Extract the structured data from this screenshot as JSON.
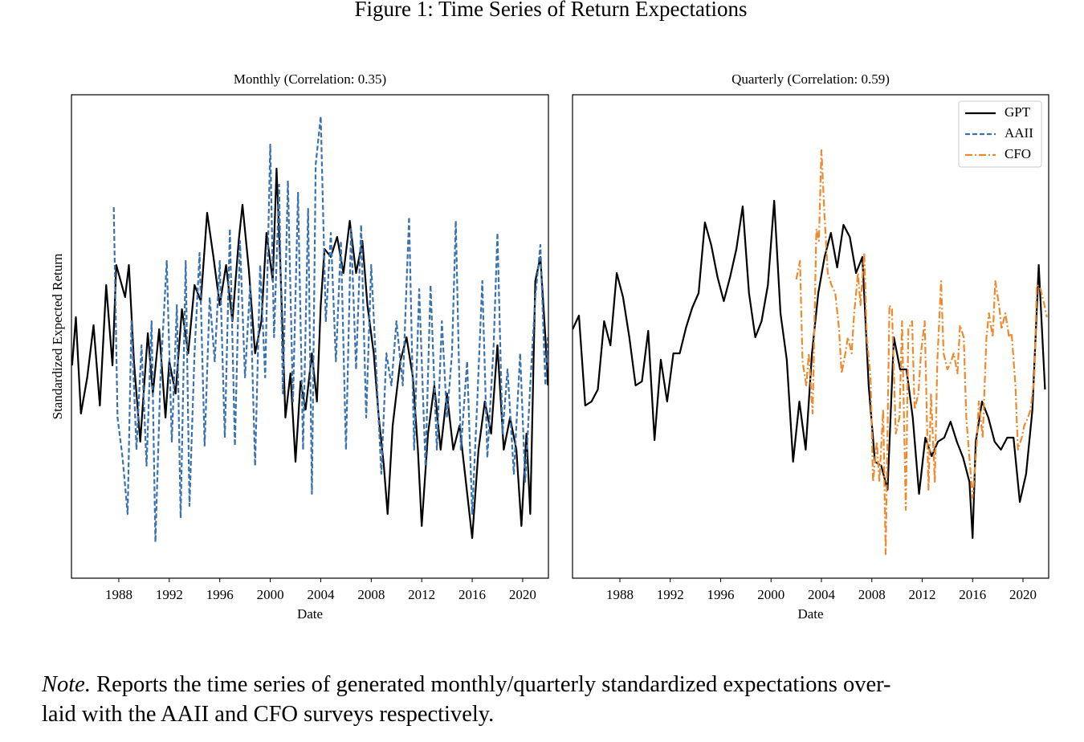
{
  "figure_title": "Figure 1: Time Series of Return Expectations",
  "note": {
    "label": "Note.",
    "lines": [
      "Reports the time series of generated monthly/quarterly standardized expectations over-",
      "laid with the AAII and CFO surveys respectively."
    ]
  },
  "chart_data": [
    {
      "type": "line",
      "title": "Monthly (Correlation: 0.35)",
      "xlabel": "Date",
      "ylabel": "Standardized Expected Return",
      "xlim": [
        1984.25,
        2022.04
      ],
      "ylim": [
        -3.0,
        3.02
      ],
      "xticks": [
        1988,
        1992,
        1996,
        2000,
        2004,
        2008,
        2012,
        2016,
        2020
      ],
      "grid": false,
      "series": [
        {
          "name": "GPT",
          "color": "#000000",
          "dash": "solid",
          "x": [
            1984.3,
            1984.6,
            1985,
            1985.5,
            1986,
            1986.5,
            1987,
            1987.5,
            1987.8,
            1988.5,
            1988.8,
            1989.2,
            1989.7,
            1990.3,
            1990.7,
            1991.2,
            1991.7,
            1992,
            1992.5,
            1993,
            1993.5,
            1994,
            1994.5,
            1995,
            1995.5,
            1996,
            1996.5,
            1997,
            1997.5,
            1997.8,
            1998.3,
            1998.8,
            1999.3,
            1999.7,
            2000.2,
            2000.5,
            2000.8,
            2001.2,
            2001.6,
            2002,
            2002.4,
            2002.8,
            2003.3,
            2003.7,
            2004,
            2004.3,
            2004.8,
            2005.3,
            2005.8,
            2006.3,
            2006.8,
            2007.3,
            2007.7,
            2008.2,
            2008.6,
            2009,
            2009.3,
            2009.7,
            2010.3,
            2010.8,
            2011.3,
            2011.7,
            2012,
            2012.5,
            2013,
            2013.5,
            2014,
            2014.5,
            2015,
            2015.5,
            2016,
            2016.5,
            2017,
            2017.5,
            2018,
            2018.5,
            2019,
            2019.5,
            2019.9,
            2020.3,
            2020.6,
            2021,
            2021.4,
            2021.8,
            2022
          ],
          "values": [
            -0.35,
            0.25,
            -0.95,
            -0.5,
            0.15,
            -0.85,
            0.65,
            -0.35,
            0.9,
            0.5,
            0.9,
            -0.3,
            -1.3,
            0.05,
            -0.7,
            0.1,
            -1.0,
            -0.3,
            -0.7,
            0.35,
            -0.2,
            0.65,
            0.45,
            1.55,
            1.0,
            0.4,
            0.9,
            0.2,
            1.2,
            1.65,
            0.85,
            -0.2,
            0.2,
            1.3,
            0.7,
            2.1,
            0.9,
            -1.0,
            -0.45,
            -1.55,
            -0.55,
            -0.9,
            -0.2,
            -0.8,
            0.4,
            1.1,
            1.0,
            1.25,
            0.8,
            1.45,
            0.8,
            1.2,
            0.4,
            -0.2,
            -1.0,
            -1.6,
            -2.2,
            -1.1,
            -0.3,
            0.0,
            -0.5,
            -1.4,
            -2.35,
            -1.2,
            -0.6,
            -1.4,
            -0.7,
            -1.4,
            -1.1,
            -1.8,
            -2.5,
            -1.4,
            -0.8,
            -1.2,
            -0.1,
            -1.4,
            -1.0,
            -1.4,
            -2.35,
            -1.2,
            -2.2,
            0.7,
            1.0,
            0.0,
            -0.6
          ]
        },
        {
          "name": "AAII",
          "color": "#3a72b0",
          "dash": "dashed",
          "x": [
            1987.6,
            1987.9,
            1988.3,
            1988.7,
            1989,
            1989.4,
            1989.8,
            1990.2,
            1990.6,
            1990.9,
            1991.3,
            1991.8,
            1992.2,
            1992.6,
            1992.9,
            1993.3,
            1993.6,
            1994,
            1994.4,
            1994.8,
            1995.2,
            1995.6,
            1996,
            1996.4,
            1996.8,
            1997.2,
            1997.6,
            1998,
            1998.4,
            1998.8,
            1999.2,
            1999.6,
            2000,
            2000.3,
            2000.7,
            2001,
            2001.4,
            2001.8,
            2002.2,
            2002.6,
            2003,
            2003.3,
            2003.6,
            2004,
            2004.4,
            2004.8,
            2005.2,
            2005.6,
            2006,
            2006.4,
            2006.8,
            2007.2,
            2007.6,
            2008,
            2008.4,
            2008.8,
            2009.2,
            2009.6,
            2010,
            2010.5,
            2011,
            2011.4,
            2011.8,
            2012.3,
            2012.7,
            2013.2,
            2013.6,
            2014,
            2014.4,
            2014.7,
            2015.1,
            2015.6,
            2016,
            2016.4,
            2016.8,
            2017.2,
            2017.7,
            2018,
            2018.4,
            2018.8,
            2019.3,
            2019.8,
            2020.2,
            2020.6,
            2021,
            2021.4,
            2021.8,
            2022
          ],
          "values": [
            1.62,
            -1.0,
            -1.5,
            -2.2,
            0.2,
            -1.4,
            -0.1,
            -1.6,
            0.2,
            -2.55,
            -0.5,
            0.95,
            -1.3,
            0.4,
            -2.25,
            0.95,
            -2.1,
            -0.2,
            1.05,
            -1.35,
            0.5,
            -0.3,
            0.95,
            -1.25,
            1.35,
            -1.35,
            1.2,
            -0.5,
            0.65,
            -1.6,
            0.9,
            -0.5,
            2.4,
            0.0,
            1.9,
            -0.7,
            1.95,
            -0.8,
            1.8,
            -1.4,
            1.6,
            -1.95,
            2.15,
            2.75,
            0.2,
            1.3,
            -0.3,
            1.2,
            -1.4,
            1.35,
            -0.4,
            1.4,
            -1.0,
            0.9,
            -0.4,
            -1.7,
            -0.2,
            -0.6,
            0.2,
            -0.6,
            1.5,
            -1.4,
            0.6,
            -1.6,
            0.65,
            -1.4,
            0.2,
            -1.0,
            -0.2,
            1.45,
            -1.4,
            -0.3,
            -2.2,
            -0.8,
            0.7,
            -1.5,
            -0.1,
            1.3,
            -1.2,
            -0.4,
            -1.7,
            -0.2,
            -1.8,
            -0.6,
            0.5,
            1.15,
            -0.6,
            0.0
          ]
        }
      ]
    },
    {
      "type": "line",
      "title": "Quarterly (Correlation: 0.59)",
      "xlabel": "Date",
      "xlim": [
        1984.24,
        2022.04
      ],
      "ylim": [
        -3.0,
        3.02
      ],
      "xticks": [
        1988,
        1992,
        1996,
        2000,
        2004,
        2008,
        2012,
        2016,
        2020
      ],
      "grid": false,
      "legend": "upper right",
      "series": [
        {
          "name": "GPT",
          "color": "#000000",
          "dash": "solid",
          "x": [
            1984.25,
            1984.75,
            1985.25,
            1985.75,
            1986.25,
            1986.75,
            1987.25,
            1987.75,
            1988.25,
            1988.75,
            1989.25,
            1989.75,
            1990.25,
            1990.75,
            1991.25,
            1991.75,
            1992.25,
            1992.75,
            1993.25,
            1993.75,
            1994.25,
            1994.75,
            1995.25,
            1995.75,
            1996.25,
            1996.75,
            1997.25,
            1997.75,
            1998.25,
            1998.75,
            1999.25,
            1999.75,
            2000.25,
            2000.75,
            2001.25,
            2001.75,
            2002.25,
            2002.75,
            2003.25,
            2003.75,
            2004.25,
            2004.75,
            2005.25,
            2005.75,
            2006.25,
            2006.75,
            2007.25,
            2007.75,
            2008.25,
            2008.75,
            2009.25,
            2009.75,
            2010.25,
            2010.75,
            2011.25,
            2011.75,
            2012.25,
            2012.75,
            2013.25,
            2013.75,
            2014.25,
            2014.75,
            2015.25,
            2015.75,
            2016.0,
            2016.25,
            2016.75,
            2017.25,
            2017.75,
            2018.25,
            2018.75,
            2019.25,
            2019.75,
            2020.25,
            2020.75,
            2021.25,
            2021.75
          ],
          "values": [
            0.1,
            0.27,
            -0.85,
            -0.8,
            -0.65,
            0.2,
            -0.1,
            0.8,
            0.5,
            0.0,
            -0.6,
            -0.55,
            0.08,
            -1.28,
            -0.28,
            -0.8,
            -0.2,
            -0.2,
            0.12,
            0.37,
            0.55,
            1.43,
            1.15,
            0.75,
            0.45,
            0.75,
            1.1,
            1.63,
            0.55,
            0.0,
            0.2,
            0.65,
            1.7,
            0.3,
            -0.28,
            -1.55,
            -0.8,
            -1.4,
            -0.2,
            0.55,
            1.0,
            1.3,
            0.87,
            1.4,
            1.25,
            0.8,
            1.0,
            -0.6,
            -1.55,
            -1.6,
            -1.9,
            0.0,
            -0.4,
            -0.4,
            -1.0,
            -1.95,
            -1.25,
            -1.48,
            -1.3,
            -1.25,
            -1.05,
            -1.3,
            -1.5,
            -1.8,
            -2.5,
            -1.3,
            -0.8,
            -1.0,
            -1.3,
            -1.4,
            -1.25,
            -1.25,
            -2.05,
            -1.7,
            -0.9,
            0.9,
            -0.65
          ]
        },
        {
          "name": "CFO",
          "color": "#ee8a2e",
          "dash": "dashdot",
          "x": [
            2002.0,
            2002.3,
            2002.5,
            2002.8,
            2003.0,
            2003.3,
            2003.6,
            2003.8,
            2004.0,
            2004.25,
            2004.5,
            2004.8,
            2005.1,
            2005.4,
            2005.6,
            2005.9,
            2006.1,
            2006.4,
            2006.6,
            2006.9,
            2007.1,
            2007.4,
            2007.6,
            2007.9,
            2008.1,
            2008.4,
            2008.6,
            2008.9,
            2009.1,
            2009.4,
            2009.6,
            2009.9,
            2010.2,
            2010.4,
            2010.7,
            2010.9,
            2011.2,
            2011.4,
            2011.7,
            2011.9,
            2012.2,
            2012.5,
            2012.7,
            2013.0,
            2013.2,
            2013.5,
            2013.7,
            2014.0,
            2014.3,
            2014.5,
            2014.8,
            2015.0,
            2015.3,
            2015.5,
            2015.8,
            2016.0,
            2016.3,
            2016.5,
            2016.8,
            2017.1,
            2017.3,
            2017.6,
            2017.8,
            2018.1,
            2018.3,
            2018.6,
            2018.9,
            2019.1,
            2019.4,
            2019.6,
            2019.9,
            2020.1,
            2020.4,
            2020.6,
            2020.9,
            2021.1,
            2021.4,
            2021.7,
            2021.9
          ],
          "values": [
            0.72,
            0.95,
            -0.3,
            -0.6,
            -0.2,
            -0.95,
            1.35,
            1.2,
            2.33,
            1.5,
            0.8,
            0.65,
            0.55,
            0.1,
            -0.45,
            -0.2,
            0.0,
            -0.2,
            0.3,
            0.8,
            0.4,
            1.05,
            0.0,
            -0.5,
            -1.8,
            -1.3,
            -1.8,
            -0.9,
            -2.7,
            0.4,
            0.35,
            -1.2,
            -1.0,
            0.2,
            -2.15,
            0.1,
            0.2,
            -0.9,
            -0.7,
            -0.2,
            0.2,
            -1.9,
            -0.7,
            -1.8,
            -0.3,
            0.7,
            -0.2,
            -0.4,
            -0.3,
            -0.2,
            -0.45,
            0.15,
            0.0,
            -1.0,
            -1.6,
            -2.0,
            -1.4,
            -0.8,
            -1.25,
            0.0,
            0.3,
            0.0,
            0.7,
            0.4,
            0.1,
            0.3,
            0.0,
            0.05,
            -0.6,
            -1.4,
            -1.25,
            -1.1,
            -1.0,
            -0.9,
            -0.5,
            0.65,
            0.6,
            0.4,
            0.25
          ]
        }
      ]
    }
  ]
}
